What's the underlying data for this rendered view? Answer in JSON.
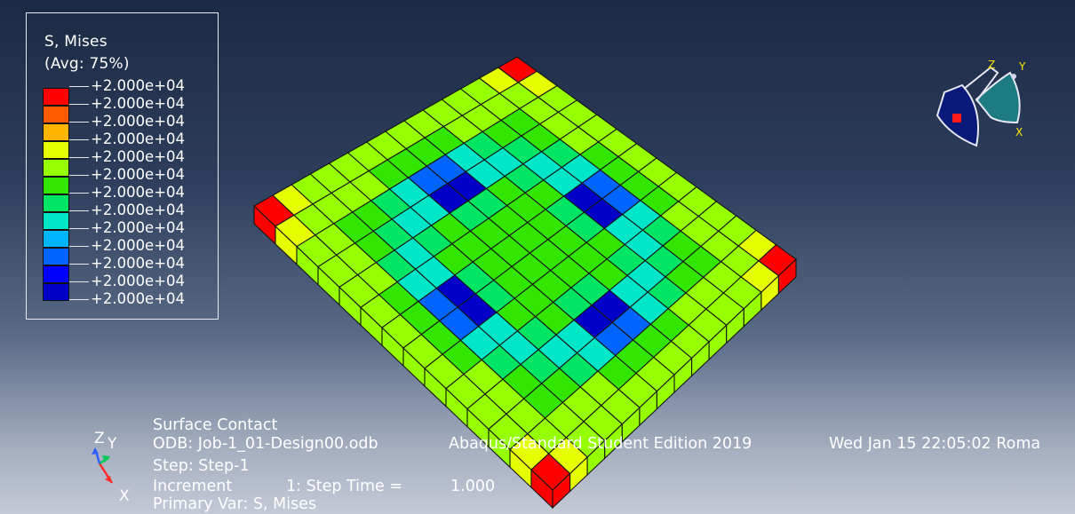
{
  "legend": {
    "title": "S, Mises",
    "subtitle": "(Avg: 75%)",
    "values": [
      "+2.000e+04",
      "+2.000e+04",
      "+2.000e+04",
      "+2.000e+04",
      "+2.000e+04",
      "+2.000e+04",
      "+2.000e+04",
      "+2.000e+04",
      "+2.000e+04",
      "+2.000e+04",
      "+2.000e+04",
      "+2.000e+04",
      "+2.000e+04"
    ],
    "colors": [
      "#ff0000",
      "#ff5a00",
      "#ffb400",
      "#e6ff00",
      "#96ff00",
      "#32e600",
      "#00e664",
      "#00e6c8",
      "#00b4ff",
      "#0064ff",
      "#0000ff",
      "#0000c8"
    ]
  },
  "info": {
    "title": "Surface Contact",
    "odb": "ODB: Job-1_01-Design00.odb",
    "product": "Abaqus/Standard Student Edition 2019",
    "date": "Wed Jan 15 22:05:02 Roma",
    "step": "Step: Step-1",
    "increment_label": "Increment",
    "increment_value": "1: Step Time =",
    "step_time": "1.000",
    "primary_var": "Primary Var: S, Mises"
  },
  "triad_mini": {
    "x": "X",
    "y": "Y",
    "z": "Z"
  },
  "triad_3d": {
    "x": "X",
    "y": "Y",
    "z": "Z"
  },
  "model": {
    "grid": 14,
    "thickness_cells": 1
  }
}
